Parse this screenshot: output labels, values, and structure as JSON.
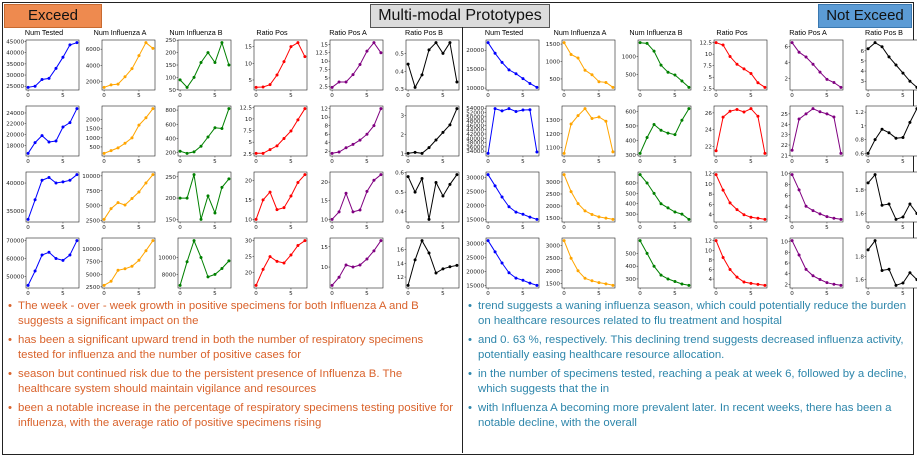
{
  "header": {
    "exceed_label": "Exceed",
    "title": "Multi-modal Prototypes",
    "not_exceed_label": "Not Exceed"
  },
  "columns": [
    "Num Tested",
    "Num Influenza A",
    "Num Influenza B",
    "Ratio Pos",
    "Ratio Pos A",
    "Ratio Pos B"
  ],
  "series_colors": [
    "#0000ff",
    "#ffa500",
    "#008000",
    "#ff0000",
    "#800080",
    "#000000"
  ],
  "panels": {
    "exceed": [
      [
        {
          "y": [
            24500,
            25000,
            28000,
            28500,
            33000,
            38000,
            43500,
            44500
          ],
          "yticks": [
            25000,
            30000,
            35000,
            40000,
            45000
          ]
        },
        {
          "y": [
            1300,
            1600,
            1700,
            2600,
            3600,
            5200,
            6800,
            6100
          ],
          "yticks": [
            2000,
            4000,
            6000
          ]
        },
        {
          "y": [
            90,
            60,
            100,
            160,
            200,
            160,
            240,
            150
          ],
          "yticks": [
            50,
            100,
            150,
            200,
            250
          ]
        },
        {
          "y": [
            2.8,
            2.9,
            3.6,
            6.5,
            10.5,
            15,
            16.2,
            12
          ],
          "yticks": [
            5,
            10,
            15
          ]
        },
        {
          "y": [
            2.2,
            3.8,
            3.8,
            6,
            9,
            13,
            15.5,
            12.5
          ],
          "yticks": [
            2.5,
            5,
            7.5,
            10,
            12.5,
            15
          ]
        },
        {
          "y": [
            0.44,
            0.31,
            0.38,
            0.52,
            0.56,
            0.5,
            0.56,
            0.34
          ],
          "yticks": [
            0.3,
            0.4,
            0.5
          ]
        }
      ],
      [
        {
          "y": [
            16500,
            18500,
            19800,
            18600,
            18800,
            21400,
            22200,
            24800
          ],
          "yticks": [
            18000,
            20000,
            22000,
            24000
          ]
        },
        {
          "y": [
            150,
            300,
            450,
            700,
            1000,
            1700,
            2100,
            2600
          ],
          "yticks": [
            500,
            1000,
            1500,
            2000
          ]
        },
        {
          "y": [
            220,
            190,
            210,
            290,
            420,
            550,
            540,
            820
          ],
          "yticks": [
            200,
            400,
            600,
            800
          ]
        },
        {
          "y": [
            2.6,
            2.6,
            3.4,
            4.2,
            5.8,
            7.4,
            9.8,
            12.2
          ],
          "yticks": [
            2.5,
            5,
            7.5,
            10,
            12.5
          ]
        },
        {
          "y": [
            1.5,
            1.8,
            2.8,
            3.6,
            4.6,
            6,
            8,
            12
          ],
          "yticks": [
            2,
            4,
            6,
            8,
            10,
            12
          ]
        },
        {
          "y": [
            1.0,
            1.05,
            1.0,
            1.3,
            1.7,
            2.1,
            2.5,
            3.35
          ],
          "yticks": [
            1,
            2,
            3
          ]
        }
      ],
      [
        {
          "y": [
            33500,
            37000,
            40500,
            41000,
            40000,
            40200,
            40500,
            41500
          ],
          "yticks": [
            35000,
            40000,
            45000
          ]
        },
        {
          "y": [
            2700,
            4500,
            5500,
            5100,
            6200,
            7300,
            8800,
            10200
          ],
          "yticks": [
            2500,
            5000,
            7500,
            10000
          ]
        },
        {
          "y": [
            200,
            200,
            255,
            150,
            205,
            165,
            225,
            245
          ],
          "yticks": [
            150,
            200,
            250
          ]
        },
        {
          "y": [
            10,
            15,
            17,
            12.5,
            13,
            16,
            19.5,
            21.5
          ],
          "yticks": [
            10,
            15,
            20
          ]
        },
        {
          "y": [
            10,
            12,
            17,
            12,
            12.5,
            17.5,
            20.5,
            22
          ],
          "yticks": [
            10,
            15,
            20
          ]
        },
        {
          "y": [
            0.58,
            0.5,
            0.57,
            0.36,
            0.55,
            0.48,
            0.54,
            0.59
          ],
          "yticks": [
            0.4,
            0.5,
            0.6
          ]
        }
      ],
      [
        {
          "y": [
            45000,
            53000,
            62000,
            63500,
            60000,
            59000,
            62000,
            70000
          ],
          "yticks": [
            50000,
            60000,
            70000
          ]
        },
        {
          "y": [
            2800,
            3600,
            5800,
            6100,
            6600,
            7800,
            9700,
            11700
          ],
          "yticks": [
            2500,
            5000,
            7500,
            10000,
            12500
          ]
        },
        {
          "y": [
            6700,
            9500,
            12000,
            10000,
            7700,
            8000,
            8700,
            9600
          ],
          "yticks": [
            6000,
            8000,
            10000
          ]
        },
        {
          "y": [
            16,
            21,
            25,
            23.5,
            23,
            25.5,
            28.5,
            30
          ],
          "yticks": [
            20,
            25,
            30
          ]
        },
        {
          "y": [
            5.5,
            7.5,
            10.5,
            10,
            10.5,
            12,
            14,
            16.5
          ],
          "yticks": [
            10,
            15
          ]
        },
        {
          "y": [
            10.8,
            14.5,
            17.3,
            15.5,
            12.6,
            13.2,
            13.5,
            13.7
          ],
          "yticks": [
            12,
            14,
            16
          ]
        }
      ]
    ],
    "not_exceed": [
      [
        {
          "y": [
            22000,
            19200,
            16800,
            14800,
            13800,
            12500,
            11200,
            10200
          ],
          "yticks": [
            10000,
            15000,
            20000
          ]
        },
        {
          "y": [
            1540,
            1200,
            1100,
            750,
            620,
            420,
            400,
            260
          ],
          "yticks": [
            500,
            1000,
            1500
          ]
        },
        {
          "y": [
            1400,
            1380,
            1160,
            760,
            560,
            480,
            310,
            130
          ],
          "yticks": [
            500,
            1000
          ]
        },
        {
          "y": [
            12.5,
            12,
            9.5,
            7.8,
            6.8,
            5.8,
            3.8,
            2.8
          ],
          "yticks": [
            2.5,
            5,
            7.5,
            10,
            12.5
          ]
        },
        {
          "y": [
            6.5,
            5.3,
            4.7,
            3.8,
            2.8,
            1.9,
            1.5,
            0.9
          ],
          "yticks": [
            2,
            4,
            6
          ]
        },
        {
          "y": [
            6.2,
            6.8,
            6.4,
            5.4,
            4.6,
            3.8,
            3.0,
            2.4
          ],
          "yticks": [
            3,
            4,
            5,
            6
          ]
        }
      ],
      [
        {
          "y": [
            33000,
            53800,
            52800,
            53800,
            52500,
            53200,
            53300,
            33600
          ],
          "yticks": [
            34000,
            36000,
            38000,
            40000,
            42000,
            44000,
            46000,
            48000,
            50000,
            52000,
            54000
          ]
        },
        {
          "y": [
            1060,
            1270,
            1330,
            1380,
            1310,
            1320,
            1290,
            1070
          ],
          "yticks": [
            1100,
            1200,
            1300,
            1400
          ]
        },
        {
          "y": [
            310,
            420,
            510,
            470,
            450,
            440,
            540,
            620
          ],
          "yticks": [
            300,
            400,
            500,
            600
          ]
        },
        {
          "y": [
            21.5,
            25.5,
            26.2,
            26.4,
            26.1,
            26.5,
            25.6,
            21.2
          ],
          "yticks": [
            22,
            24,
            26
          ]
        },
        {
          "y": [
            21.5,
            24.5,
            25,
            25.5,
            25.2,
            25,
            24.7,
            21.2
          ],
          "yticks": [
            21,
            22,
            23,
            24,
            25
          ]
        },
        {
          "y": [
            0.6,
            0.8,
            0.95,
            0.9,
            0.82,
            0.83,
            1.05,
            1.25
          ],
          "yticks": [
            0.6,
            0.8,
            1.0,
            1.2
          ]
        }
      ],
      [
        {
          "y": [
            31000,
            27000,
            23000,
            19500,
            17600,
            16800,
            15800,
            15000
          ],
          "yticks": [
            15000,
            20000,
            25000,
            30000
          ]
        },
        {
          "y": [
            3300,
            2600,
            2100,
            1800,
            1650,
            1550,
            1500,
            1450
          ],
          "yticks": [
            1500,
            2000,
            2500,
            3000
          ]
        },
        {
          "y": [
            680,
            600,
            500,
            400,
            360,
            320,
            300,
            250
          ],
          "yticks": [
            300,
            400,
            500,
            600
          ]
        },
        {
          "y": [
            11.8,
            8.8,
            6.3,
            5,
            4,
            3.5,
            3.3,
            3.1
          ],
          "yticks": [
            4,
            6,
            8,
            10,
            12
          ]
        },
        {
          "y": [
            9.8,
            7,
            4,
            3.2,
            2.6,
            2.1,
            1.8,
            1.6
          ],
          "yticks": [
            2,
            4,
            6,
            8,
            10
          ]
        },
        {
          "y": [
            1.86,
            1.93,
            1.67,
            1.68,
            1.55,
            1.57,
            1.68,
            1.6
          ],
          "yticks": [
            1.6,
            1.8
          ]
        }
      ],
      [
        {
          "y": [
            31000,
            27000,
            23000,
            19500,
            17600,
            16800,
            15800,
            15000
          ],
          "yticks": [
            15000,
            20000,
            25000,
            30000
          ]
        },
        {
          "y": [
            3200,
            2500,
            2000,
            1700,
            1600,
            1530,
            1480,
            1420
          ],
          "yticks": [
            1500,
            2000,
            2500,
            3000
          ]
        },
        {
          "y": [
            600,
            500,
            400,
            330,
            300,
            280,
            260,
            250
          ],
          "yticks": [
            300,
            400,
            500
          ]
        },
        {
          "y": [
            12,
            8.5,
            6,
            4.4,
            3.4,
            3.1,
            2.9,
            2.7
          ],
          "yticks": [
            2,
            4,
            6,
            8,
            10,
            12
          ]
        },
        {
          "y": [
            10.2,
            7.5,
            4.8,
            3.6,
            2.9,
            2.3,
            2.0,
            1.8
          ],
          "yticks": [
            2,
            4,
            6,
            8,
            10
          ]
        },
        {
          "y": [
            1.86,
            1.94,
            1.68,
            1.69,
            1.55,
            1.57,
            1.66,
            1.6
          ],
          "yticks": [
            1.6,
            1.8
          ]
        }
      ]
    ]
  },
  "x_ticks": [
    0,
    5
  ],
  "bullets": {
    "exceed": [
      "The week - over - week growth in positive specimens for both Influenza A and B suggests a significant impact on the",
      "has been a significant upward trend in both the number of respiratory specimens tested for influenza and the number of positive cases for",
      "season but continued risk due to the persistent presence of Influenza B. The healthcare system should maintain vigilance and resources",
      "been a notable increase in the percentage of respiratory specimens testing positive for influenza, with the average ratio of positive specimens rising"
    ],
    "not_exceed": [
      "trend suggests a waning influenza season, which could potentially reduce the burden on healthcare resources related to flu treatment and hospital",
      "and 0. 63 %, respectively. This declining trend suggests decreased influenza activity, potentially easing healthcare resource allocation.",
      "in the number of specimens tested, reaching a peak at week 6, followed by a decline, which suggests that the in",
      "with Influenza A becoming more prevalent later. In recent weeks, there has been a notable decline, with the overall"
    ],
    "bullet_glyph": "•"
  }
}
